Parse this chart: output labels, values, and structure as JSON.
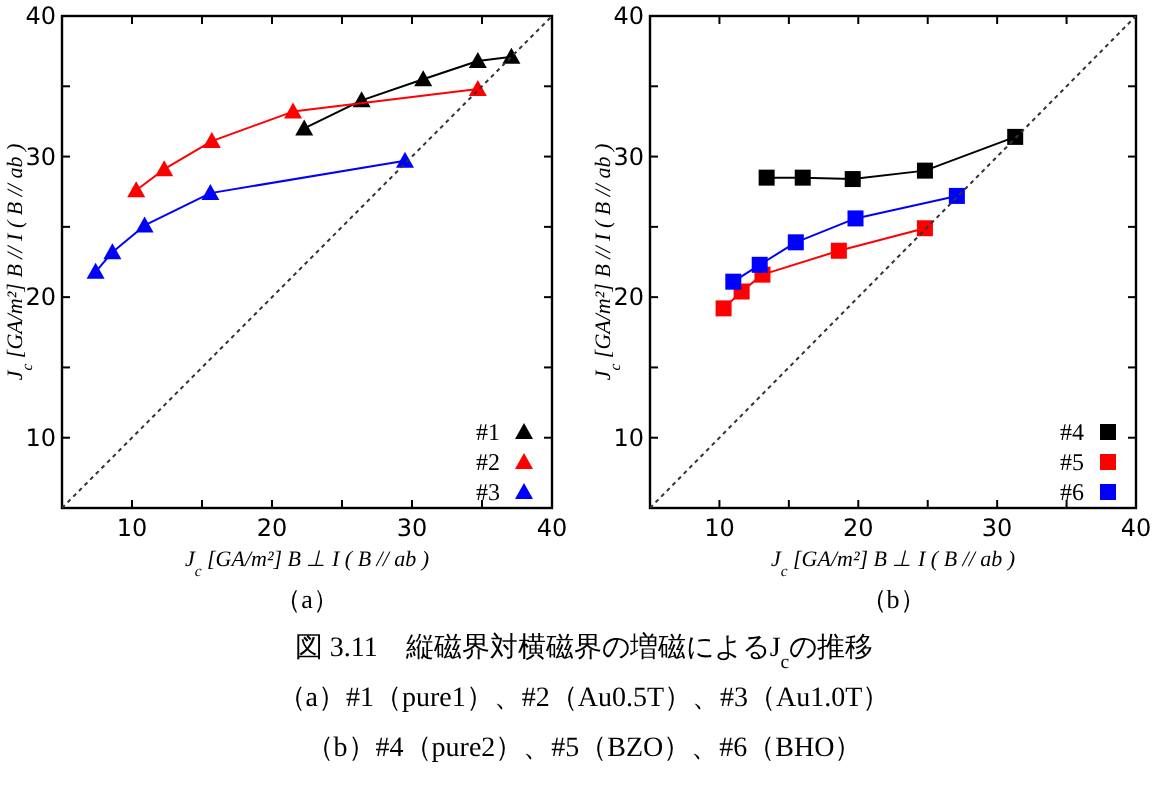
{
  "chart_data": [
    {
      "type": "line",
      "marker": "triangle",
      "legend": "bottom right",
      "annotations": [
        "（a）"
      ],
      "xlabel": "J$_{c}$ [GA/m²] B ⊥ I ( B // ab )",
      "ylabel": "J$_{c}$ [GA/m²] B // I ( B // ab )",
      "xlim": [
        5,
        40
      ],
      "ylim": [
        5,
        40
      ],
      "xticks": [
        10,
        {
          "value": 15,
          "label": null
        },
        20,
        {
          "value": 25,
          "label": null
        },
        30,
        {
          "value": 35,
          "label": null
        },
        40
      ],
      "yticks": [
        10,
        {
          "value": 15,
          "label": null
        },
        20,
        {
          "value": 25,
          "label": null
        },
        30,
        {
          "value": 35,
          "label": null
        },
        40
      ],
      "series": [
        {
          "name": "#1",
          "color": "#000000",
          "x": [
            22.3,
            26.4,
            30.8,
            34.7,
            37.1
          ],
          "values": [
            32.0,
            34.0,
            35.5,
            36.8,
            37.1
          ]
        },
        {
          "name": "#2",
          "color": "#ff0000",
          "x": [
            10.3,
            12.3,
            15.7,
            21.5,
            34.7
          ],
          "values": [
            27.6,
            29.1,
            31.1,
            33.2,
            34.8
          ]
        },
        {
          "name": "#3",
          "color": "#0000ff",
          "x": [
            7.4,
            8.6,
            10.9,
            15.6,
            29.5
          ],
          "values": [
            21.8,
            23.2,
            25.1,
            27.4,
            29.7
          ]
        },
        {
          "color": "#333333",
          "marker": "none",
          "line_style": "dotted",
          "x": [
            5,
            40
          ],
          "values": [
            5,
            40
          ]
        }
      ]
    },
    {
      "type": "line",
      "marker": "square",
      "legend": "bottom right",
      "annotations": [
        "（b）"
      ],
      "xlabel": "J$_{c}$ [GA/m²] B ⊥ I ( B // ab )",
      "ylabel": "J$_{c}$ [GA/m²] B // I ( B // ab )",
      "xlim": [
        5,
        40
      ],
      "ylim": [
        5,
        40
      ],
      "xticks": [
        10,
        {
          "value": 15,
          "label": null
        },
        20,
        {
          "value": 25,
          "label": null
        },
        30,
        {
          "value": 35,
          "label": null
        },
        40
      ],
      "yticks": [
        10,
        {
          "value": 15,
          "label": null
        },
        20,
        {
          "value": 25,
          "label": null
        },
        30,
        {
          "value": 35,
          "label": null
        },
        40
      ],
      "series": [
        {
          "name": "#4",
          "color": "#000000",
          "x": [
            13.4,
            16.0,
            19.6,
            24.8,
            31.3
          ],
          "values": [
            28.5,
            28.5,
            28.4,
            29.0,
            31.4
          ]
        },
        {
          "name": "#5",
          "color": "#ff0000",
          "x": [
            10.3,
            11.6,
            13.1,
            18.6,
            24.8
          ],
          "values": [
            19.2,
            20.4,
            21.6,
            23.3,
            24.9
          ]
        },
        {
          "name": "#6",
          "color": "#0000ff",
          "x": [
            11.0,
            12.9,
            15.5,
            19.8,
            27.1
          ],
          "values": [
            21.1,
            22.3,
            23.9,
            25.6,
            27.2
          ]
        },
        {
          "color": "#333333",
          "marker": "none",
          "line_style": "dotted",
          "x": [
            5,
            40
          ],
          "values": [
            5,
            40
          ]
        }
      ]
    },
    {
      "type": "other",
      "annotations": [
        "図 3.11　縦磁界対横磁界の増磁によるJ$_{c}$の推移",
        "（a）#1（pure1）、#2（Au0.5T）、#3（Au1.0T）",
        "（b）#4（pure2）、#5（BZO）、#6（BHO）"
      ]
    }
  ]
}
